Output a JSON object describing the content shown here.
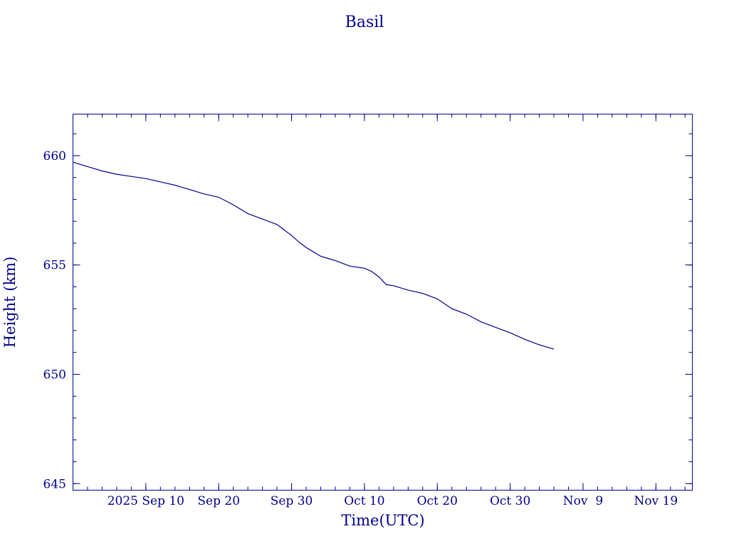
{
  "chart_data": {
    "type": "line",
    "title": "Basil",
    "xlabel": "Time(UTC)",
    "ylabel": "Height (km)",
    "xlim": [
      "2025-08-31",
      "2025-11-24"
    ],
    "ylim": [
      644.7,
      661.9
    ],
    "x_ticks": [
      {
        "x": "2025-09-10",
        "label": "2025 Sep 10"
      },
      {
        "x": "2025-09-20",
        "label": "Sep 20"
      },
      {
        "x": "2025-09-30",
        "label": "Sep 30"
      },
      {
        "x": "2025-10-10",
        "label": "Oct 10"
      },
      {
        "x": "2025-10-20",
        "label": "Oct 20"
      },
      {
        "x": "2025-10-30",
        "label": "Oct 30"
      },
      {
        "x": "2025-11-09",
        "label": "Nov  9"
      },
      {
        "x": "2025-11-19",
        "label": "Nov 19"
      }
    ],
    "y_ticks": [
      {
        "y": 645,
        "label": "645"
      },
      {
        "y": 650,
        "label": "650"
      },
      {
        "y": 655,
        "label": "655"
      },
      {
        "y": 660,
        "label": "660"
      }
    ],
    "grid": false,
    "legend": "none",
    "color": "#00008b",
    "series": [
      {
        "x": [
          "2025-08-31",
          "2025-09-02",
          "2025-09-04",
          "2025-09-06",
          "2025-09-08",
          "2025-09-10",
          "2025-09-12",
          "2025-09-14",
          "2025-09-16",
          "2025-09-18",
          "2025-09-20",
          "2025-09-22",
          "2025-09-24",
          "2025-09-26",
          "2025-09-28",
          "2025-09-29",
          "2025-09-30",
          "2025-10-01",
          "2025-10-02",
          "2025-10-03",
          "2025-10-04",
          "2025-10-05",
          "2025-10-06",
          "2025-10-08",
          "2025-10-10",
          "2025-10-11",
          "2025-10-12",
          "2025-10-13",
          "2025-10-14",
          "2025-10-16",
          "2025-10-18",
          "2025-10-20",
          "2025-10-22",
          "2025-10-24",
          "2025-10-26",
          "2025-10-28",
          "2025-10-30",
          "2025-11-01",
          "2025-11-03",
          "2025-11-05"
        ],
        "y": [
          659.7,
          659.5,
          659.3,
          659.15,
          659.05,
          658.95,
          658.8,
          658.65,
          658.45,
          658.25,
          658.1,
          657.75,
          657.35,
          657.1,
          656.85,
          656.6,
          656.35,
          656.05,
          655.8,
          655.6,
          655.4,
          655.3,
          655.2,
          654.95,
          654.85,
          654.7,
          654.45,
          654.1,
          654.05,
          653.85,
          653.7,
          653.45,
          653.0,
          652.75,
          652.4,
          652.15,
          651.9,
          651.6,
          651.35,
          651.15
        ]
      }
    ]
  }
}
